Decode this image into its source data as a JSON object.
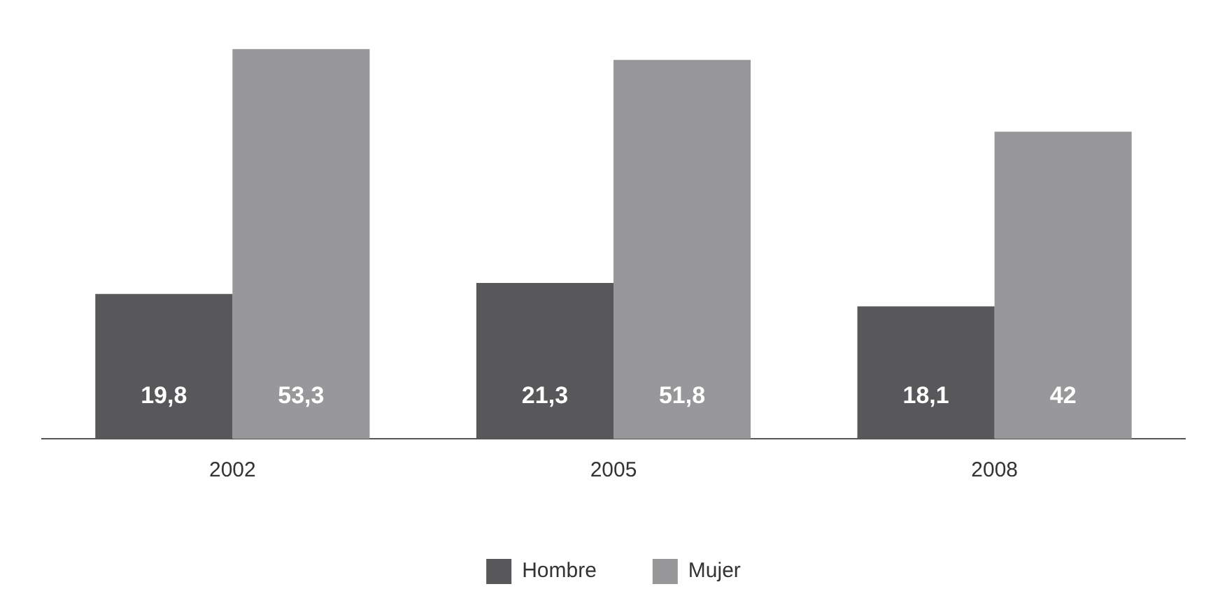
{
  "chart_data": {
    "type": "bar",
    "categories": [
      "2002",
      "2005",
      "2008"
    ],
    "series": [
      {
        "name": "Hombre",
        "color": "#58585a",
        "values": [
          19.8,
          21.3,
          18.1
        ],
        "value_labels": [
          "19,8",
          "21,3",
          "18,1"
        ]
      },
      {
        "name": "Mujer",
        "color": "#98989b",
        "values": [
          53.3,
          51.8,
          42
        ],
        "value_labels": [
          "53,3",
          "51,8",
          "42"
        ]
      }
    ],
    "legend": "bottom",
    "grid": false
  }
}
